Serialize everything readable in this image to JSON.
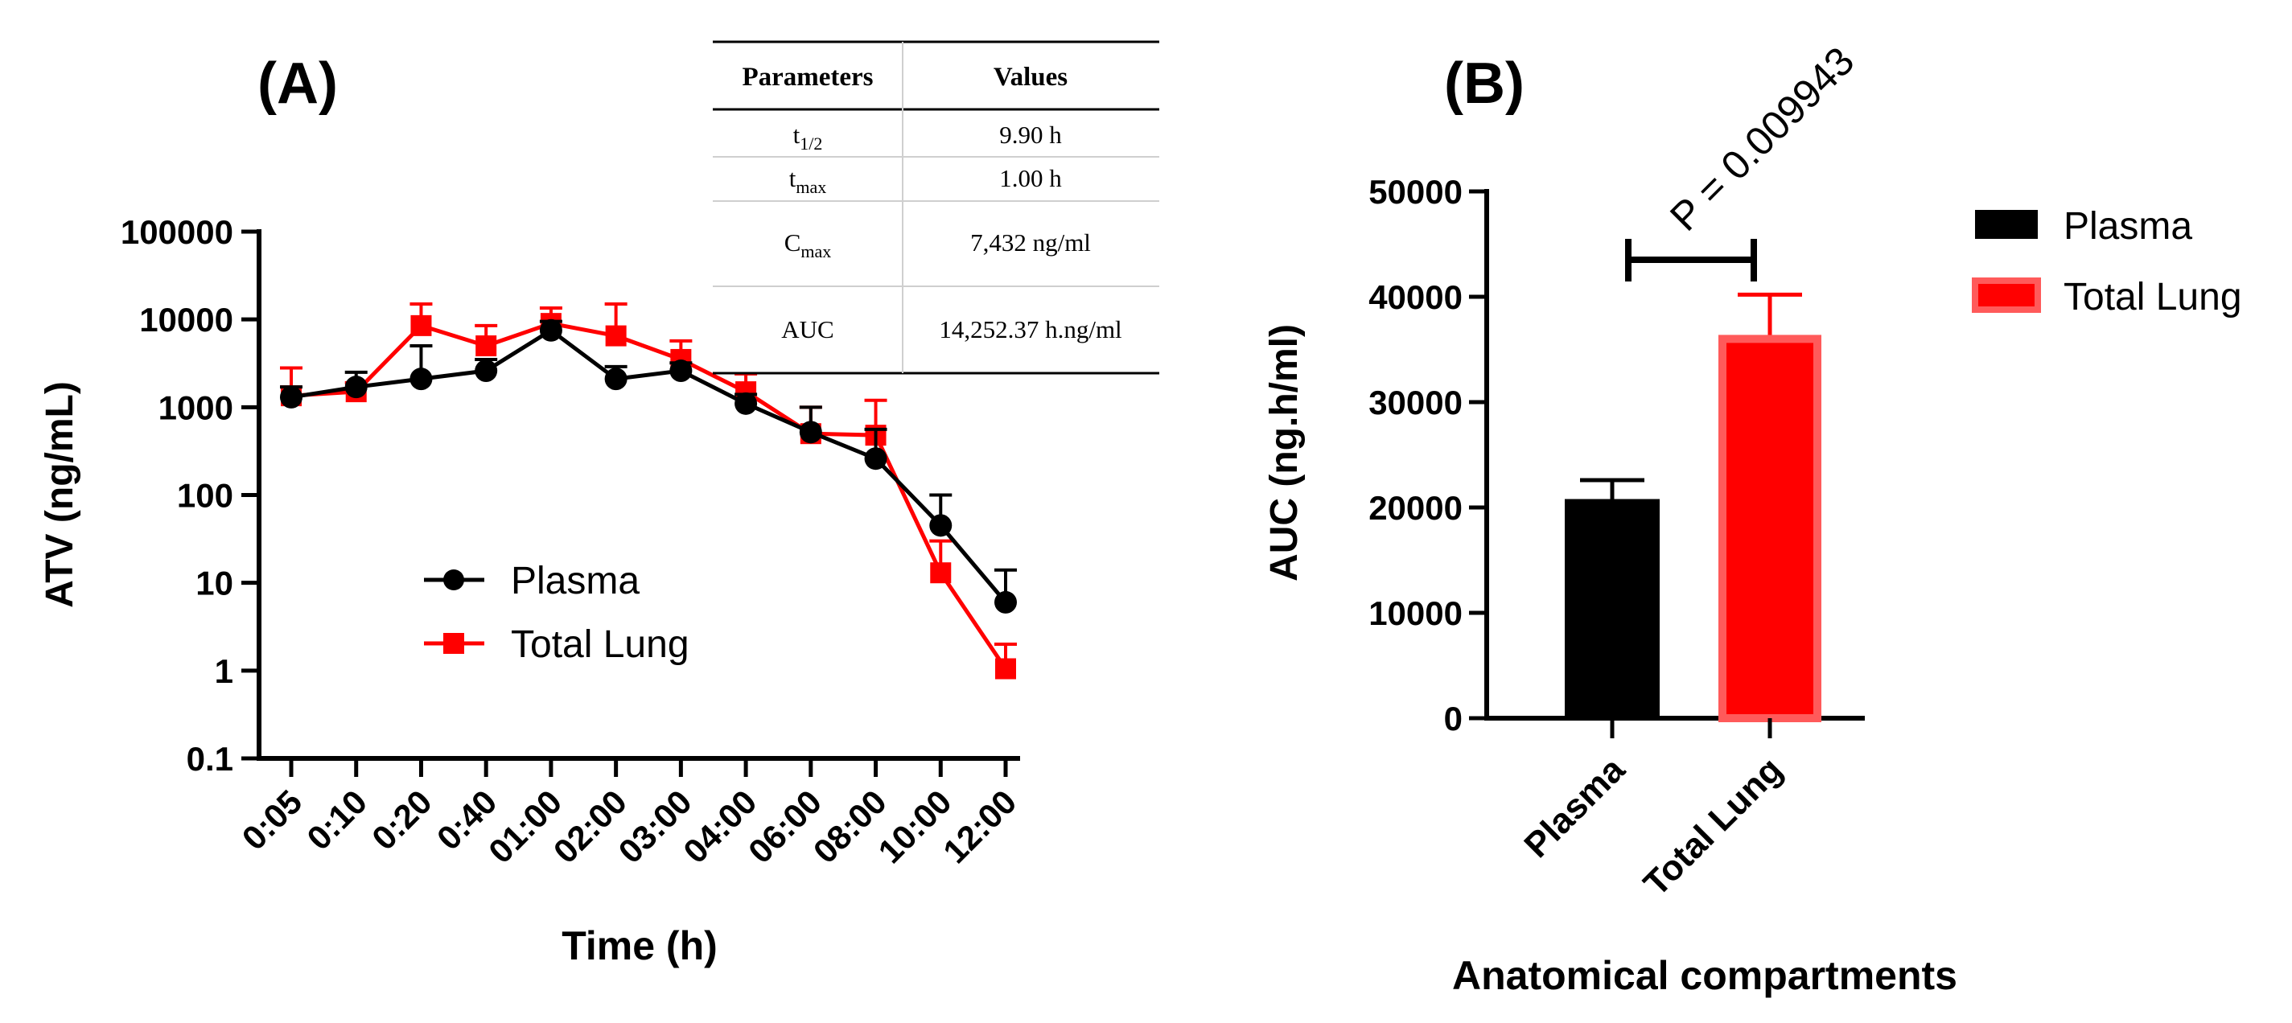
{
  "chart_data": [
    {
      "panel_label": "(A)",
      "type": "line",
      "title": "",
      "xlabel": "Time (h)",
      "ylabel": "ATV (ng/mL)",
      "yscale": "log",
      "ylim": [
        0.1,
        100000
      ],
      "ytick_labels": [
        "0.1",
        "1",
        "10",
        "100",
        "1000",
        "10000",
        "100000"
      ],
      "categories": [
        "0:05",
        "0:10",
        "0:20",
        "0:40",
        "01:00",
        "02:00",
        "03:00",
        "04:00",
        "06:00",
        "08:00",
        "10:00",
        "12:00"
      ],
      "legend_position": "center-left",
      "series": [
        {
          "name": "Plasma",
          "color": "#000000",
          "marker": "circle",
          "values": [
            1300,
            1700,
            2100,
            2600,
            7500,
            2100,
            2600,
            1100,
            520,
            260,
            45,
            6
          ],
          "error_upper": [
            1700,
            2500,
            5000,
            3500,
            9500,
            2900,
            3200,
            1400,
            1000,
            560,
            100,
            14
          ]
        },
        {
          "name": "Total Lung",
          "color": "#ff0000",
          "marker": "square",
          "values": [
            1350,
            1500,
            8500,
            5000,
            9000,
            6500,
            3500,
            1500,
            500,
            480,
            13,
            1.05
          ],
          "error_upper": [
            2800,
            1900,
            15000,
            8500,
            13500,
            15000,
            5700,
            2400,
            1000,
            1200,
            30,
            2
          ]
        }
      ],
      "table": {
        "headers": [
          "Parameters",
          "Values"
        ],
        "rows": [
          {
            "param": "t",
            "sub": "1/2",
            "value": "9.90 h"
          },
          {
            "param": "t",
            "sub": "max",
            "value": "1.00 h"
          },
          {
            "param": "C",
            "sub": "max",
            "value": "7,432 ng/ml"
          },
          {
            "param": "AUC",
            "sub": "",
            "value": "14,252.37 h.ng/ml"
          }
        ]
      }
    },
    {
      "panel_label": "(B)",
      "type": "bar",
      "title": "",
      "xlabel": "Anatomical compartments",
      "ylabel": "AUC (ng.h/ml)",
      "ylim": [
        0,
        50000
      ],
      "ytick_labels": [
        "0",
        "10000",
        "20000",
        "30000",
        "40000",
        "50000"
      ],
      "categories": [
        "Plasma",
        "Total Lung"
      ],
      "values": [
        20800,
        36000
      ],
      "error_upper": [
        22600,
        40200
      ],
      "colors": [
        "#000000",
        "#ff0000"
      ],
      "annotation": "P = 0.009943",
      "legend_position": "top-right",
      "legend": [
        "Plasma",
        "Total Lung"
      ]
    }
  ]
}
